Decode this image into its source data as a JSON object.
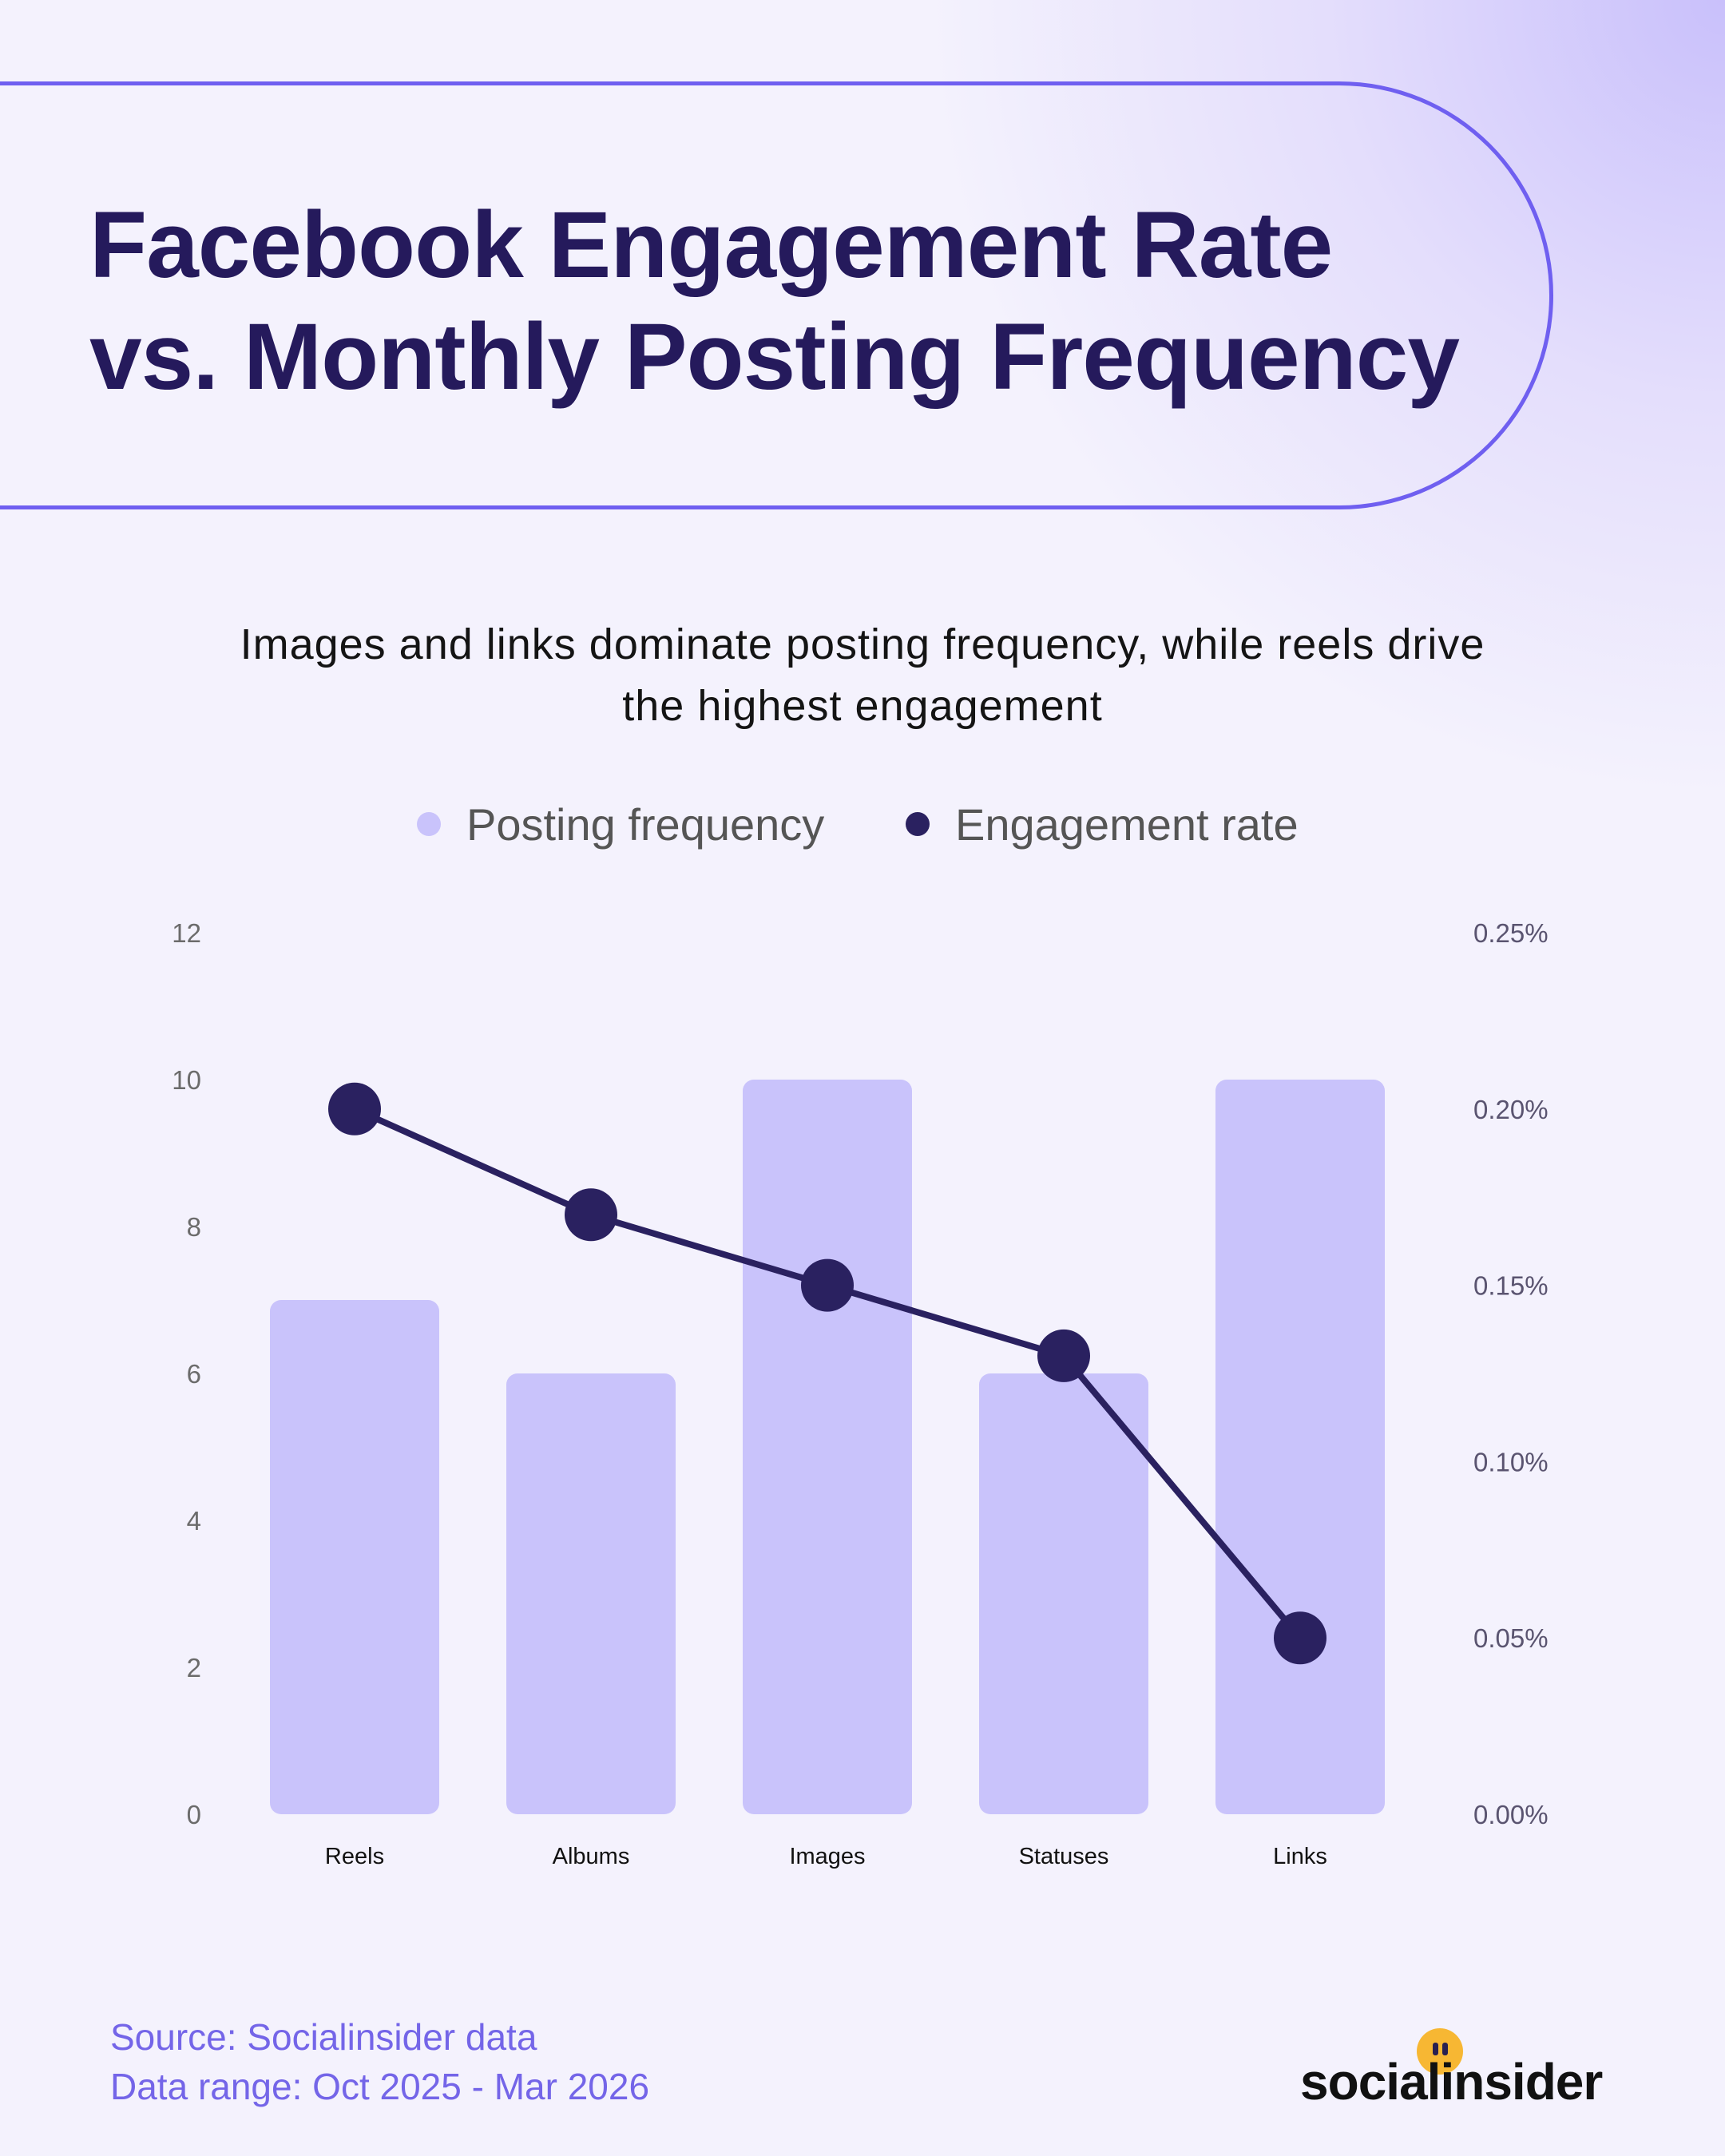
{
  "title_lines": [
    "Facebook Engagement Rate",
    "vs. Monthly Posting Frequency"
  ],
  "subtitle_lines": [
    "Images and links dominate posting frequency, while reels drive",
    "the highest engagement"
  ],
  "colors": {
    "bar": "#c9c3fb",
    "line": "#2a2160",
    "title": "#251a5c",
    "accent": "#6f5ff0",
    "source": "#7465e8"
  },
  "chart_data": {
    "type": "bar",
    "categories": [
      "Reels",
      "Albums",
      "Images",
      "Statuses",
      "Links"
    ],
    "series": [
      {
        "name": "Posting frequency",
        "type": "bar",
        "axis": "left",
        "values": [
          7,
          6,
          10,
          6,
          10
        ],
        "color": "#c9c3fb"
      },
      {
        "name": "Engagement rate",
        "type": "line",
        "axis": "right",
        "values": [
          0.2,
          0.17,
          0.15,
          0.13,
          0.05
        ],
        "color": "#2a2160"
      }
    ],
    "y_left": {
      "ticks": [
        "0",
        "2",
        "4",
        "6",
        "8",
        "10",
        "12"
      ],
      "range": [
        0,
        12
      ]
    },
    "y_right": {
      "ticks": [
        "0.00%",
        "0.05%",
        "0.10%",
        "0.15%",
        "0.20%",
        "0.25%"
      ],
      "range": [
        0,
        0.25
      ]
    },
    "legend_position": "top-center",
    "grid": false
  },
  "source": {
    "line1": "Source: Socialinsider data",
    "line2": "Data range: Oct 2025 - Mar 2026"
  },
  "brand": {
    "name": "socialinsider",
    "icon": "smiley-dot-icon"
  }
}
